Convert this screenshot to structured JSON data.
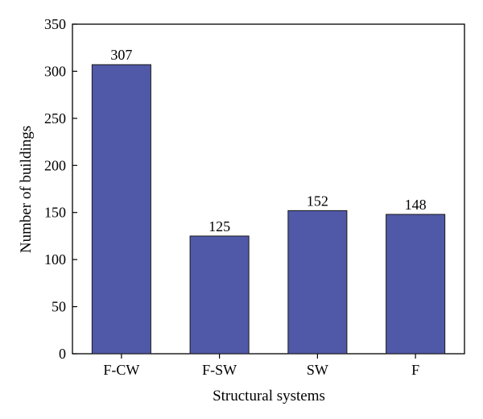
{
  "chart_data": {
    "type": "bar",
    "categories": [
      "F-CW",
      "F-SW",
      "SW",
      "F"
    ],
    "values": [
      307,
      125,
      152,
      148
    ],
    "data_labels": [
      "307",
      "125",
      "152",
      "148"
    ],
    "title": "",
    "xlabel": "Structural systems",
    "ylabel": "Number of buildings",
    "ylim": [
      0,
      350
    ],
    "yticks": [
      0,
      50,
      100,
      150,
      200,
      250,
      300,
      350
    ],
    "grid": false,
    "legend": "none",
    "bar_color": "#5058A8",
    "bar_edge_color": "#1a1a1a"
  }
}
